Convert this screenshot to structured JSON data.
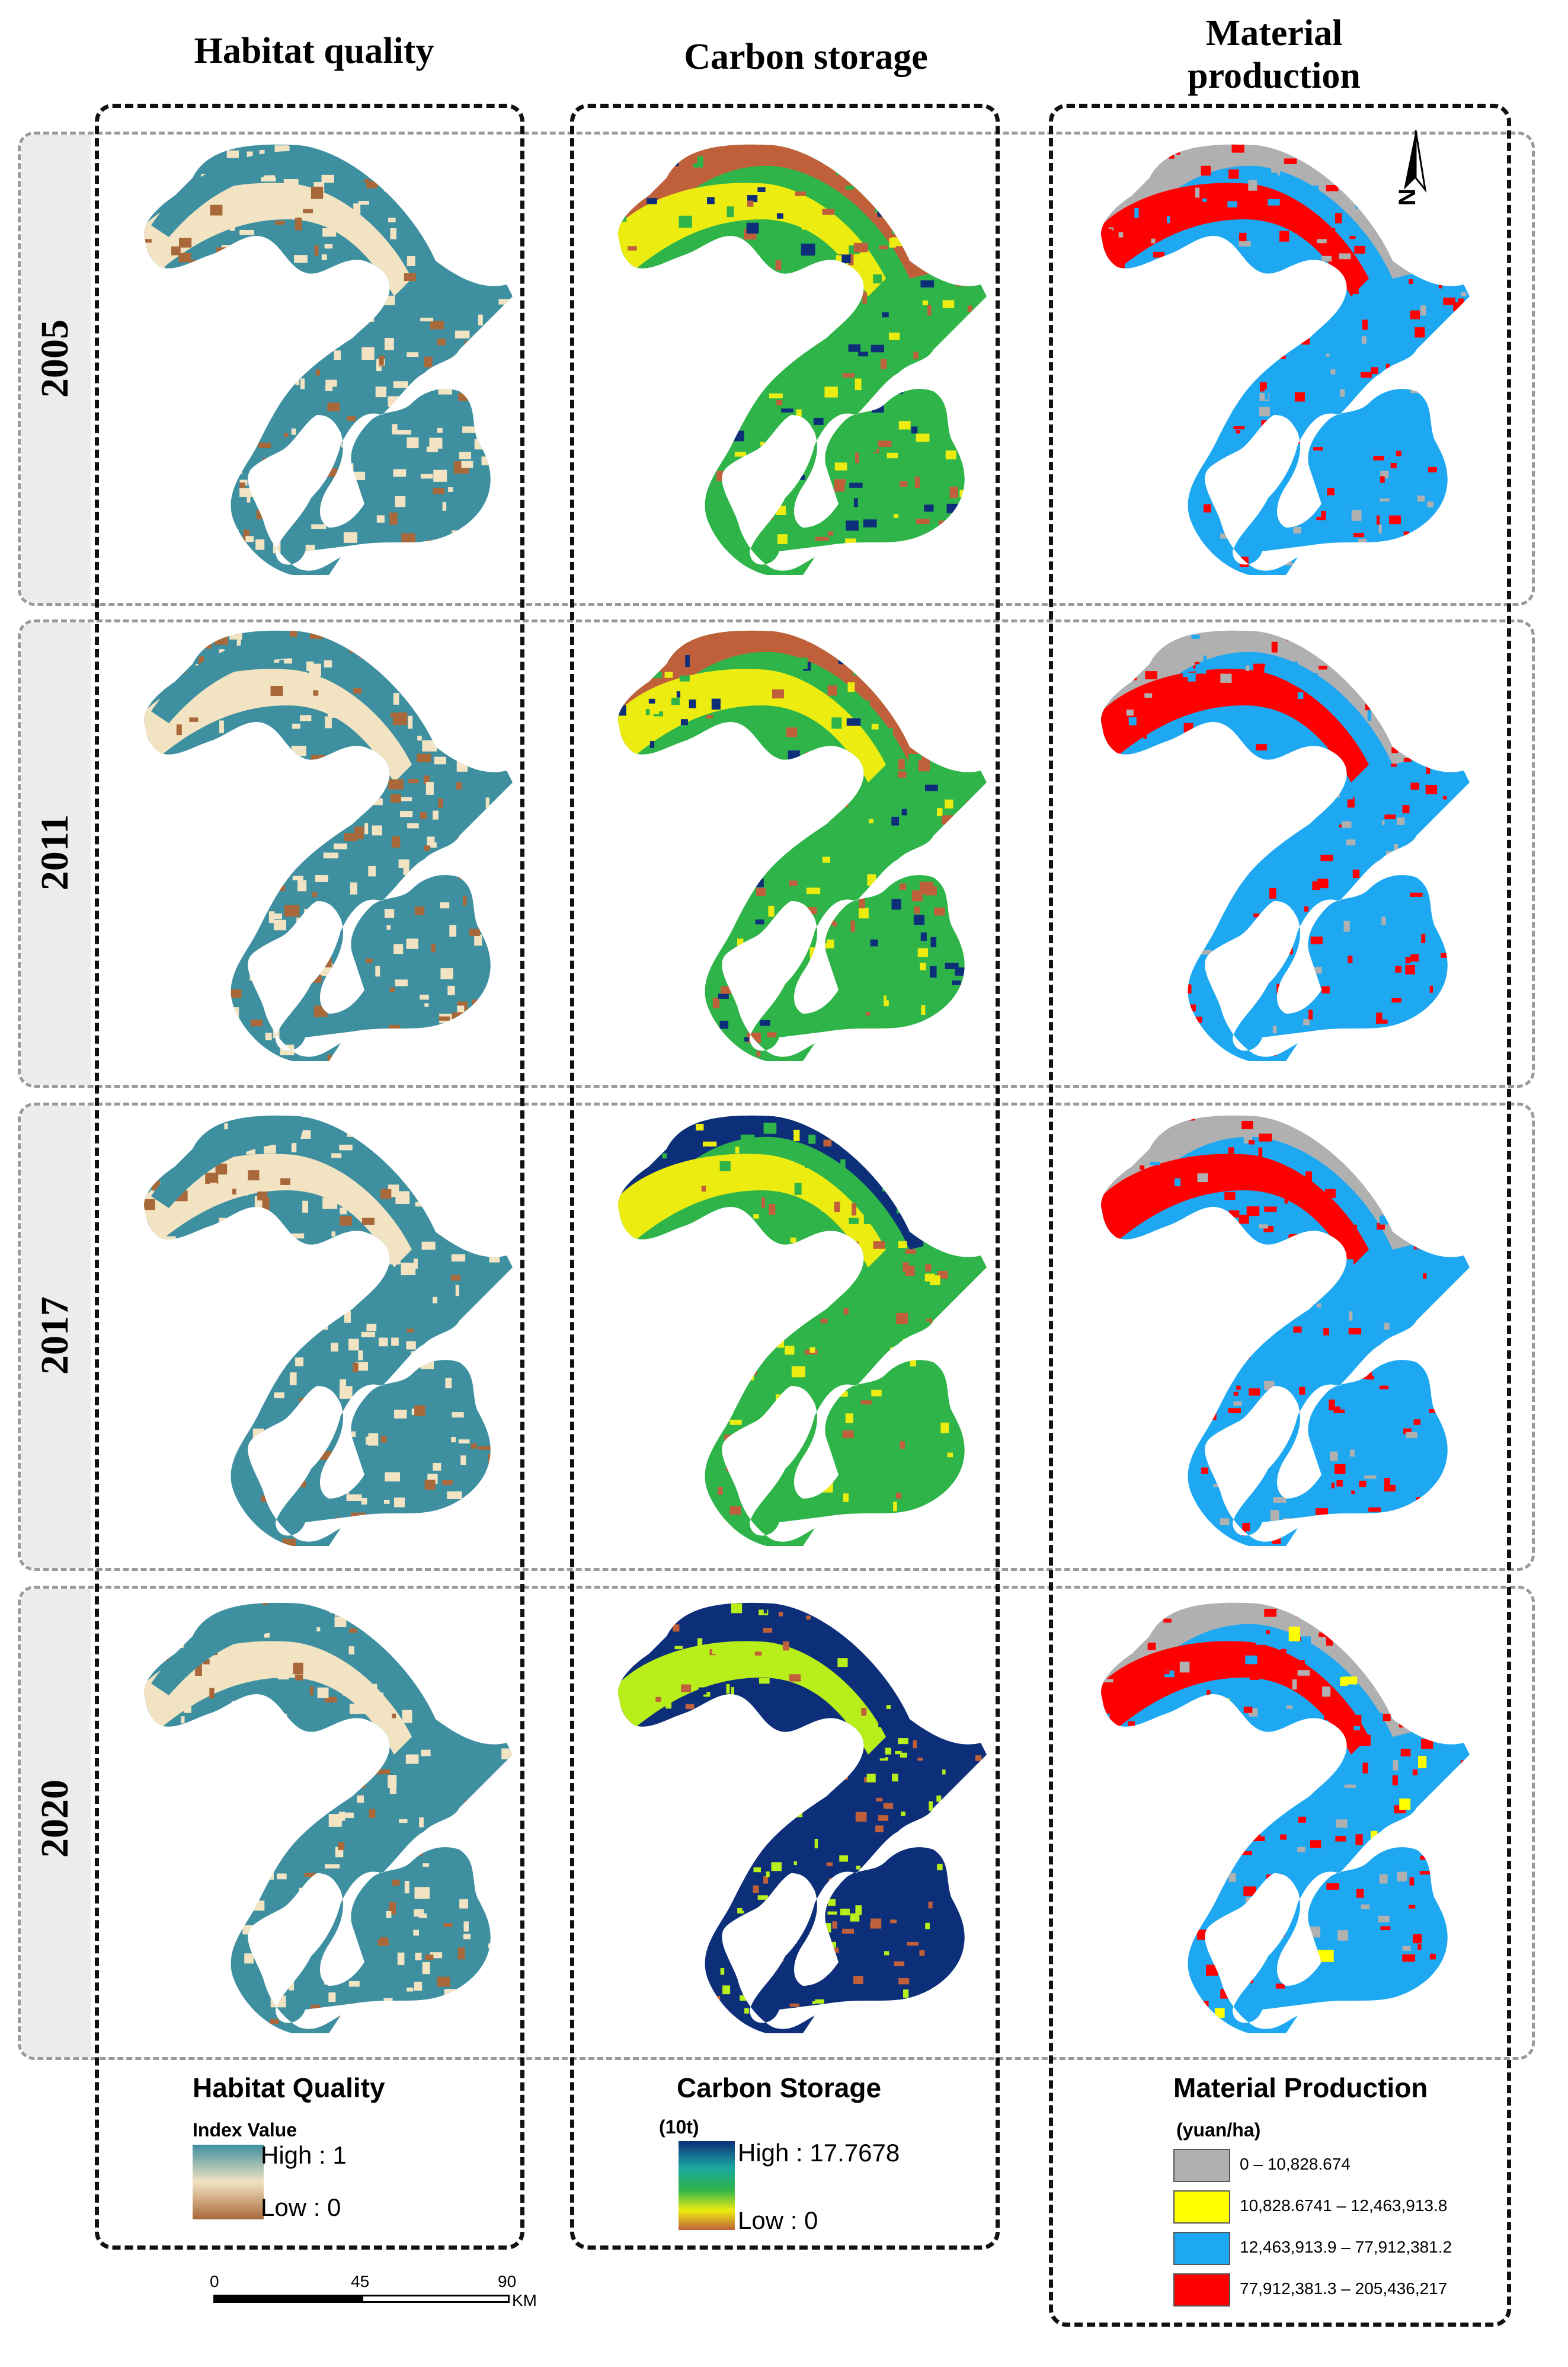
{
  "columns": [
    {
      "title": "Habitat quality"
    },
    {
      "title": "Carbon storage"
    },
    {
      "title_line1": "Material",
      "title_line2": "production"
    }
  ],
  "years": [
    "2005",
    "2011",
    "2017",
    "2020"
  ],
  "north_arrow": {
    "label": "N"
  },
  "palettes": {
    "habitat": {
      "high": "#3e8fa0",
      "mid": "#f2e3c2",
      "low": "#a8683a"
    },
    "carbon": {
      "outer": "#c0603a",
      "yellow": "#ecec10",
      "green": "#2fb44a",
      "dark": "#0d2f7a",
      "lime": "#b8ee1a"
    },
    "material": {
      "grey": "#b0b0b0",
      "red": "#ff0000",
      "blue": "#1ea8f2",
      "yellow": "#ffff00"
    }
  },
  "legends": {
    "habitat": {
      "title": "Habitat Quality",
      "subtitle": "Index Value",
      "high": "High : 1",
      "low": "Low : 0"
    },
    "carbon": {
      "title": "Carbon Storage",
      "subtitle": "(10t)",
      "high": "High : 17.7678",
      "low": "Low : 0"
    },
    "material": {
      "title": "Material Production",
      "subtitle": "(yuan/ha)",
      "classes": [
        {
          "label": "0 – 10,828.674",
          "color": "#b0b0b0"
        },
        {
          "label": "10,828.6741 – 12,463,913.8",
          "color": "#ffff00"
        },
        {
          "label": "12,463,913.9 – 77,912,381.2",
          "color": "#1ea8f2"
        },
        {
          "label": "77,912,381.3 – 205,436,217",
          "color": "#ff0000"
        }
      ]
    }
  },
  "scale_bar": {
    "ticks": [
      "0",
      "45",
      "90"
    ],
    "unit": "KM"
  }
}
